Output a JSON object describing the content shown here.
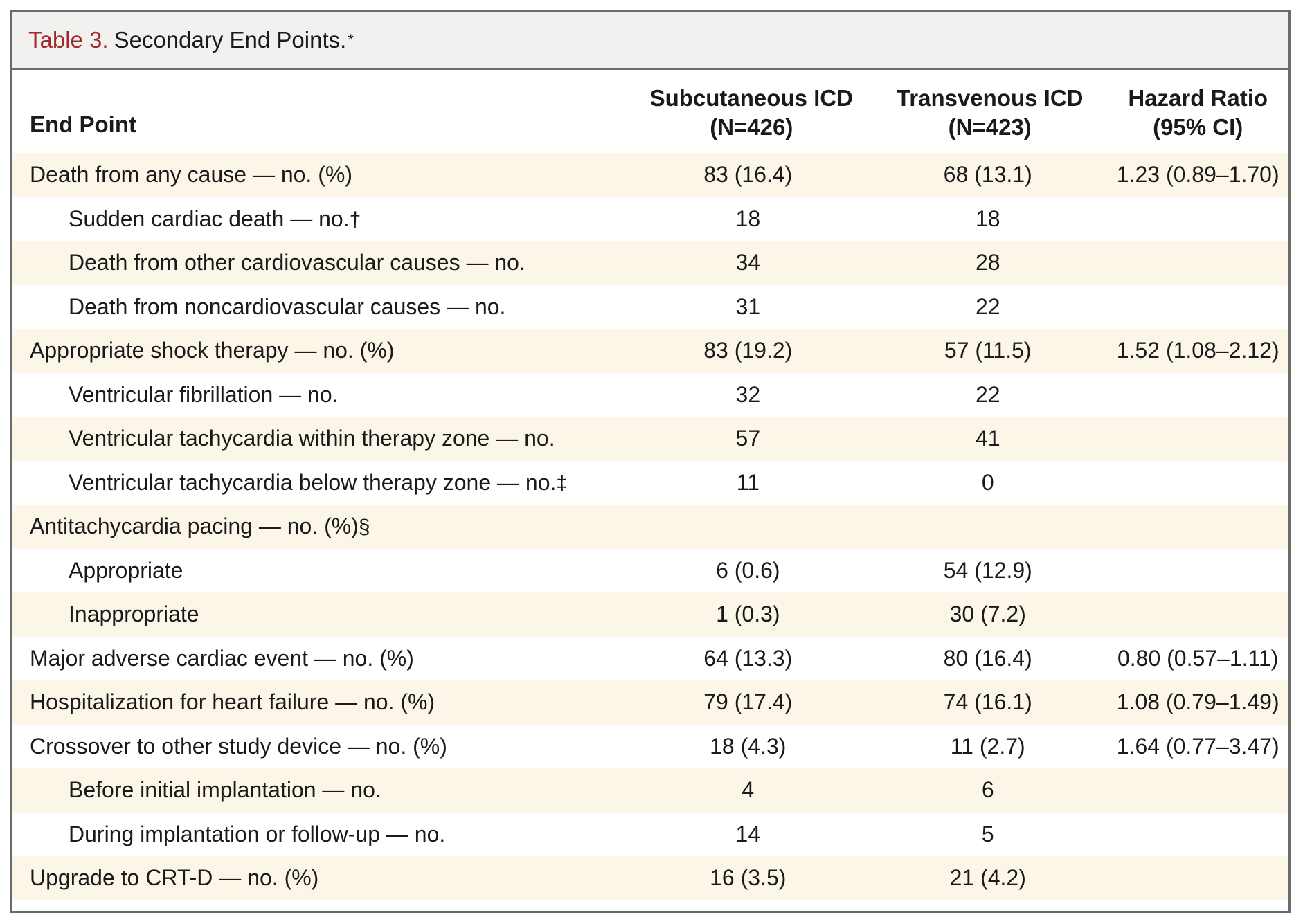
{
  "title": {
    "label": "Table 3.",
    "text": "Secondary End Points.",
    "mark": "*"
  },
  "columns": {
    "endpoint": "End Point",
    "subcutaneous_line1": "Subcutaneous ICD",
    "subcutaneous_line2": "(N=426)",
    "transvenous_line1": "Transvenous ICD",
    "transvenous_line2": "(N=423)",
    "hazard_line1": "Hazard Ratio",
    "hazard_line2": "(95% CI)"
  },
  "rows": [
    {
      "label": "Death from any cause — no. (%)",
      "footnote": "",
      "sub": "83 (16.4)",
      "trans": "68 (13.1)",
      "hr": "1.23 (0.89–1.70)",
      "indent": false,
      "shaded": true
    },
    {
      "label": "Sudden cardiac death — no.",
      "footnote": "†",
      "sub": "18",
      "trans": "18",
      "hr": "",
      "indent": true,
      "shaded": false
    },
    {
      "label": "Death from other cardiovascular causes — no.",
      "footnote": "",
      "sub": "34",
      "trans": "28",
      "hr": "",
      "indent": true,
      "shaded": true
    },
    {
      "label": "Death from noncardiovascular causes — no.",
      "footnote": "",
      "sub": "31",
      "trans": "22",
      "hr": "",
      "indent": true,
      "shaded": false
    },
    {
      "label": "Appropriate shock therapy — no. (%)",
      "footnote": "",
      "sub": "83 (19.2)",
      "trans": "57 (11.5)",
      "hr": "1.52 (1.08–2.12)",
      "indent": false,
      "shaded": true
    },
    {
      "label": "Ventricular fibrillation — no.",
      "footnote": "",
      "sub": "32",
      "trans": "22",
      "hr": "",
      "indent": true,
      "shaded": false
    },
    {
      "label": "Ventricular tachycardia within therapy zone — no.",
      "footnote": "",
      "sub": "57",
      "trans": "41",
      "hr": "",
      "indent": true,
      "shaded": true
    },
    {
      "label": "Ventricular tachycardia below therapy zone — no.",
      "footnote": "‡",
      "sub": "11",
      "trans": "0",
      "hr": "",
      "indent": true,
      "shaded": false
    },
    {
      "label": "Antitachycardia pacing — no. (%)",
      "footnote": "§",
      "sub": "",
      "trans": "",
      "hr": "",
      "indent": false,
      "shaded": true
    },
    {
      "label": "Appropriate",
      "footnote": "",
      "sub": "6 (0.6)",
      "trans": "54 (12.9)",
      "hr": "",
      "indent": true,
      "shaded": false
    },
    {
      "label": "Inappropriate",
      "footnote": "",
      "sub": "1 (0.3)",
      "trans": "30 (7.2)",
      "hr": "",
      "indent": true,
      "shaded": true
    },
    {
      "label": "Major adverse cardiac event — no. (%)",
      "footnote": "",
      "sub": "64 (13.3)",
      "trans": "80 (16.4)",
      "hr": "0.80 (0.57–1.11)",
      "indent": false,
      "shaded": false
    },
    {
      "label": "Hospitalization for heart failure — no. (%)",
      "footnote": "",
      "sub": "79 (17.4)",
      "trans": "74 (16.1)",
      "hr": "1.08 (0.79–1.49)",
      "indent": false,
      "shaded": true
    },
    {
      "label": "Crossover to other study device — no. (%)",
      "footnote": "",
      "sub": "18 (4.3)",
      "trans": "11 (2.7)",
      "hr": "1.64 (0.77–3.47)",
      "indent": false,
      "shaded": false
    },
    {
      "label": "Before initial implantation — no.",
      "footnote": "",
      "sub": "4",
      "trans": "6",
      "hr": "",
      "indent": true,
      "shaded": true
    },
    {
      "label": "During implantation or follow-up — no.",
      "footnote": "",
      "sub": "14",
      "trans": "5",
      "hr": "",
      "indent": true,
      "shaded": false
    },
    {
      "label": "Upgrade to CRT-D — no. (%)",
      "footnote": "",
      "sub": "16 (3.5)",
      "trans": "21 (4.2)",
      "hr": "",
      "indent": false,
      "shaded": true
    }
  ]
}
